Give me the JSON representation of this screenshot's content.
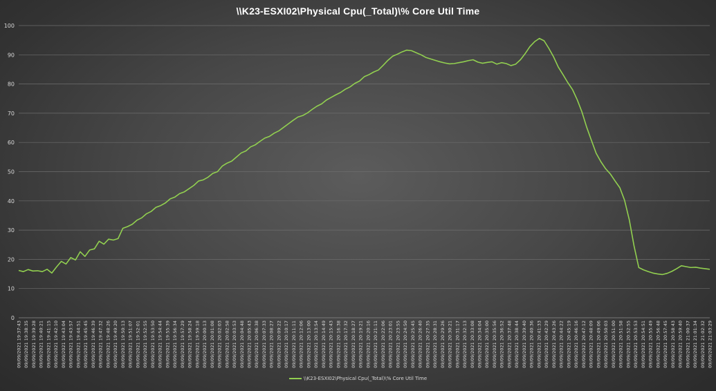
{
  "chart_data": {
    "type": "line",
    "title": "\\\\K23-ESXI02\\Physical Cpu(_Total)\\% Core Util Time",
    "xlabel": "",
    "ylabel": "",
    "ylim": [
      0,
      100
    ],
    "y_ticks": [
      0,
      10,
      20,
      30,
      40,
      50,
      60,
      70,
      80,
      90,
      100
    ],
    "grid": true,
    "legend_placement": "bottom",
    "line_color": "#92d050",
    "x_tick_labels": [
      "09/09/2021 19:37:43",
      "09/09/2021 19:38:35",
      "09/09/2021 19:39:28",
      "09/09/2021 19:40:21",
      "09/09/2021 19:41:15",
      "09/09/2021 19:42:10",
      "09/09/2021 19:43:04",
      "09/09/2021 19:43:57",
      "09/09/2021 19:44:51",
      "09/09/2021 19:45:45",
      "09/09/2021 19:46:39",
      "09/09/2021 19:47:32",
      "09/09/2021 19:48:26",
      "09/09/2021 19:49:20",
      "09/09/2021 19:50:13",
      "09/09/2021 19:51:07",
      "09/09/2021 19:52:01",
      "09/09/2021 19:52:55",
      "09/09/2021 19:53:50",
      "09/09/2021 19:54:44",
      "09/09/2021 19:55:39",
      "09/09/2021 19:56:34",
      "09/09/2021 19:57:29",
      "09/09/2021 19:58:24",
      "09/09/2021 19:59:18",
      "09/09/2021 20:00:13",
      "09/09/2021 20:01:08",
      "09/09/2021 20:02:03",
      "09/09/2021 20:02:58",
      "09/09/2021 20:03:53",
      "09/09/2021 20:04:48",
      "09/09/2021 20:05:43",
      "09/09/2021 20:06:38",
      "09/09/2021 20:07:33",
      "09/09/2021 20:08:27",
      "09/09/2021 20:09:22",
      "09/09/2021 20:10:17",
      "09/09/2021 20:11:11",
      "09/09/2021 20:12:06",
      "09/09/2021 20:13:00",
      "09/09/2021 20:13:54",
      "09/09/2021 20:14:49",
      "09/09/2021 20:15:43",
      "09/09/2021 20:16:38",
      "09/09/2021 20:17:32",
      "09/09/2021 20:18:27",
      "09/09/2021 20:19:21",
      "09/09/2021 20:20:16",
      "09/09/2021 20:21:11",
      "09/09/2021 20:22:06",
      "09/09/2021 20:23:01",
      "09/09/2021 20:23:55",
      "09/09/2021 20:24:50",
      "09/09/2021 20:25:45",
      "09/09/2021 20:26:40",
      "09/09/2021 20:27:35",
      "09/09/2021 20:28:31",
      "09/09/2021 20:29:26",
      "09/09/2021 20:30:21",
      "09/09/2021 20:31:17",
      "09/09/2021 20:32:13",
      "09/09/2021 20:33:08",
      "09/09/2021 20:34:04",
      "09/09/2021 20:35:00",
      "09/09/2021 20:35:56",
      "09/09/2021 20:36:52",
      "09/09/2021 20:37:48",
      "09/09/2021 20:38:44",
      "09/09/2021 20:39:40",
      "09/09/2021 20:40:36",
      "09/09/2021 20:41:33",
      "09/09/2021 20:42:29",
      "09/09/2021 20:43:26",
      "09/09/2021 20:44:22",
      "09/09/2021 20:45:19",
      "09/09/2021 20:46:16",
      "09/09/2021 20:47:12",
      "09/09/2021 20:48:09",
      "09/09/2021 20:49:06",
      "09/09/2021 20:50:03",
      "09/09/2021 20:51:00",
      "09/09/2021 20:51:58",
      "09/09/2021 20:52:55",
      "09/09/2021 20:53:53",
      "09/09/2021 20:54:51",
      "09/09/2021 20:55:49",
      "09/09/2021 20:56:48",
      "09/09/2021 20:57:45",
      "09/09/2021 20:58:43",
      "09/09/2021 20:59:40",
      "09/09/2021 21:00:37",
      "09/09/2021 21:01:34",
      "09/09/2021 21:02:32",
      "09/09/2021 21:03:29"
    ],
    "series": [
      {
        "name": "\\\\K23-ESXI02\\Physical Cpu(_Total)\\% Core Util Time",
        "values": [
          16.2,
          15.8,
          16.5,
          16.0,
          16.1,
          15.8,
          16.6,
          15.3,
          17.4,
          19.3,
          18.4,
          20.6,
          19.8,
          22.6,
          21.0,
          23.2,
          23.6,
          26.2,
          25.2,
          26.9,
          26.6,
          27.1,
          30.6,
          31.2,
          32.0,
          33.4,
          34.2,
          35.6,
          36.4,
          37.8,
          38.4,
          39.3,
          40.7,
          41.3,
          42.5,
          43.1,
          44.2,
          45.3,
          46.8,
          47.2,
          48.1,
          49.4,
          50.0,
          51.9,
          52.9,
          53.6,
          55.0,
          56.4,
          57.1,
          58.5,
          59.2,
          60.4,
          61.5,
          62.1,
          63.2,
          64.0,
          65.2,
          66.4,
          67.6,
          68.7,
          69.2,
          70.1,
          71.3,
          72.4,
          73.2,
          74.5,
          75.4,
          76.3,
          77.1,
          78.2,
          79.0,
          80.2,
          81.0,
          82.5,
          83.2,
          84.1,
          84.8,
          86.4,
          88.1,
          89.5,
          90.2,
          91.0,
          91.6,
          91.4,
          90.7,
          90.0,
          89.1,
          88.6,
          88.1,
          87.6,
          87.2,
          86.9,
          87.0,
          87.3,
          87.6,
          88.0,
          88.3,
          87.5,
          87.1,
          87.4,
          87.6,
          86.8,
          87.3,
          87.0,
          86.3,
          86.8,
          88.3,
          90.4,
          92.8,
          94.5,
          95.6,
          94.8,
          92.2,
          89.3,
          85.8,
          83.2,
          80.5,
          78.1,
          74.6,
          70.4,
          65.2,
          60.7,
          56.3,
          53.4,
          51.0,
          49.2,
          46.8,
          44.5,
          40.2,
          33.5,
          24.6,
          17.2,
          16.4,
          15.8,
          15.3,
          15.0,
          14.8,
          15.2,
          15.9,
          16.8,
          17.8,
          17.5,
          17.2,
          17.3,
          17.0,
          16.8,
          16.6
        ]
      }
    ]
  },
  "legend": {
    "label": "\\\\K23-ESXI02\\Physical Cpu(_Total)\\% Core Util Time"
  }
}
